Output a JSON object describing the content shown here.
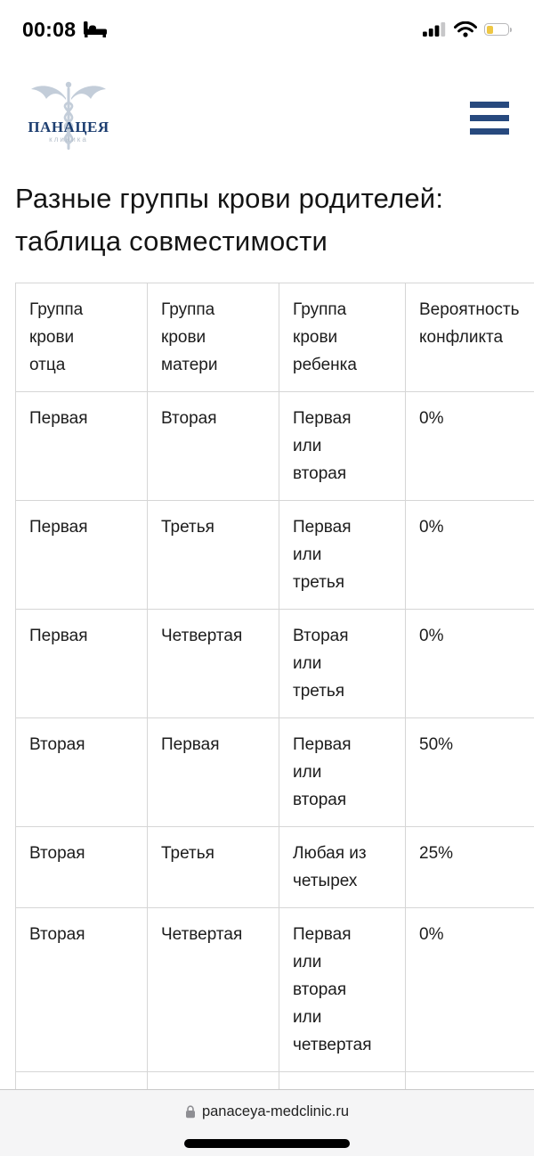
{
  "status_bar": {
    "time": "00:08",
    "focus_mode_icon": "sleep-bed-icon",
    "cellular": {
      "bars_filled": 3,
      "bars_total": 4
    },
    "wifi": "full",
    "battery": {
      "level": 0.33,
      "low_power_color": "#eec744"
    }
  },
  "header": {
    "logo_title": "ПАНАЦЕЯ",
    "logo_subtitle": "клиника",
    "brand_blue": "#27497e",
    "logo_caduceus_color": "#c3cdd9",
    "menu_icon": "hamburger-icon"
  },
  "main": {
    "title": "Разные группы крови родителей: таблица совместимости"
  },
  "table": {
    "columns": [
      "Группа\nкрови\nотца",
      "Группа\nкрови\nматери",
      "Группа\nкрови\nребенка",
      "Вероятность\nконфликта"
    ],
    "rows": [
      [
        "Первая",
        "Вторая",
        "Первая\nили\nвторая",
        "0%"
      ],
      [
        "Первая",
        "Третья",
        "Первая\nили\nтретья",
        "0%"
      ],
      [
        "Первая",
        "Четвертая",
        "Вторая\nили\nтретья",
        "0%"
      ],
      [
        "Вторая",
        "Первая",
        "Первая\nили\nвторая",
        "50%"
      ],
      [
        "Вторая",
        "Третья",
        "Любая из\nчетырех",
        "25%"
      ],
      [
        "Вторая",
        "Четвертая",
        "Первая\nили\nвторая\nили\nчетвертая",
        "0%"
      ],
      [
        "",
        "",
        "",
        ""
      ]
    ]
  },
  "browser": {
    "url": "panaceya-medclinic.ru",
    "lock_icon": "lock-icon"
  }
}
